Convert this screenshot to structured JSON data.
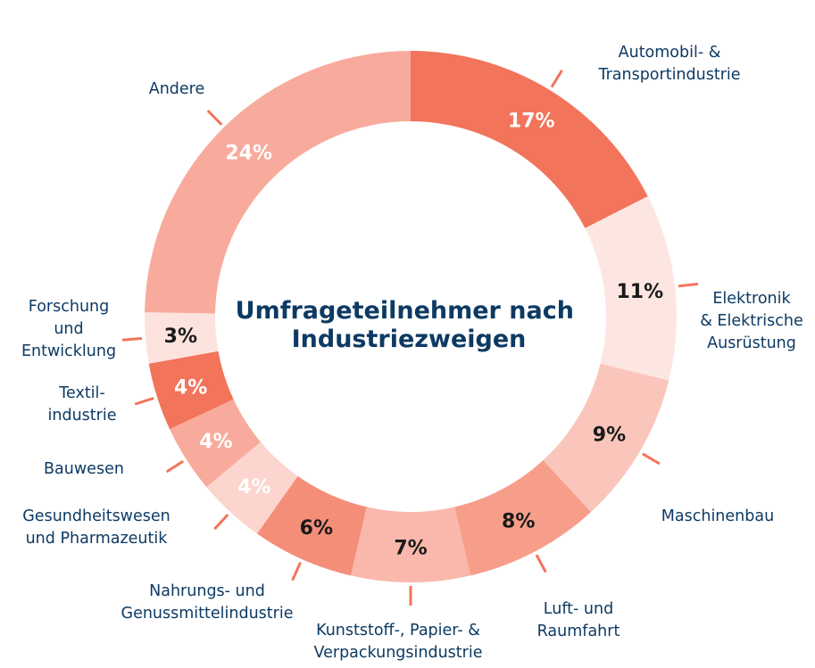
{
  "chart_data": {
    "type": "pie",
    "subtype": "donut",
    "title": "Umfrageteilnehmer nach Industriezweigen",
    "title_lines": [
      "Umfrageteilnehmer nach",
      "Industriezweigen"
    ],
    "unit": "%",
    "start": "top, clockwise",
    "slices": [
      {
        "label_lines": [
          "Automobil- &",
          "Transportindustrie"
        ],
        "value": 17,
        "value_label": "17%",
        "color": "#f2745b",
        "text_color": "#ffffff"
      },
      {
        "label_lines": [
          "Elektronik",
          "& Elektrische",
          "Ausrüstung"
        ],
        "value": 11,
        "value_label": "11%",
        "color": "#fde6e2",
        "text_color": "#1a1a1a"
      },
      {
        "label_lines": [
          "Maschinenbau"
        ],
        "value": 9,
        "value_label": "9%",
        "color": "#fac6bc",
        "text_color": "#1a1a1a"
      },
      {
        "label_lines": [
          "Luft- und",
          "Raumfahrt"
        ],
        "value": 8,
        "value_label": "8%",
        "color": "#f79e8b",
        "text_color": "#1a1a1a"
      },
      {
        "label_lines": [
          "Kunststoff-, Papier- &",
          "Verpackungsindustrie"
        ],
        "value": 7,
        "value_label": "7%",
        "color": "#f9b8ab",
        "text_color": "#1a1a1a"
      },
      {
        "label_lines": [
          "Nahrungs- und",
          "Genussmittelindustrie"
        ],
        "value": 6,
        "value_label": "6%",
        "color": "#f58e79",
        "text_color": "#1a1a1a"
      },
      {
        "label_lines": [
          "Gesundheitswesen",
          "und Pharmazeutik"
        ],
        "value": 4,
        "value_label": "4%",
        "color": "#fbd5ce",
        "text_color": "#ffffff"
      },
      {
        "label_lines": [
          "Bauwesen"
        ],
        "value": 4,
        "value_label": "4%",
        "color": "#f8ab9c",
        "text_color": "#ffffff"
      },
      {
        "label_lines": [
          "Textil-",
          "industrie"
        ],
        "value": 4,
        "value_label": "4%",
        "color": "#f2745b",
        "text_color": "#ffffff"
      },
      {
        "label_lines": [
          "Forschung",
          "und",
          "Entwicklung"
        ],
        "value": 3,
        "value_label": "3%",
        "color": "#fde3de",
        "text_color": "#1a1a1a"
      },
      {
        "label_lines": [
          "Andere"
        ],
        "value": 24,
        "value_label": "24%",
        "color": "#f8ab9c",
        "text_color": "#ffffff"
      }
    ],
    "legend": "none (callout labels around ring)",
    "leader_line_color": "#f2745b"
  }
}
